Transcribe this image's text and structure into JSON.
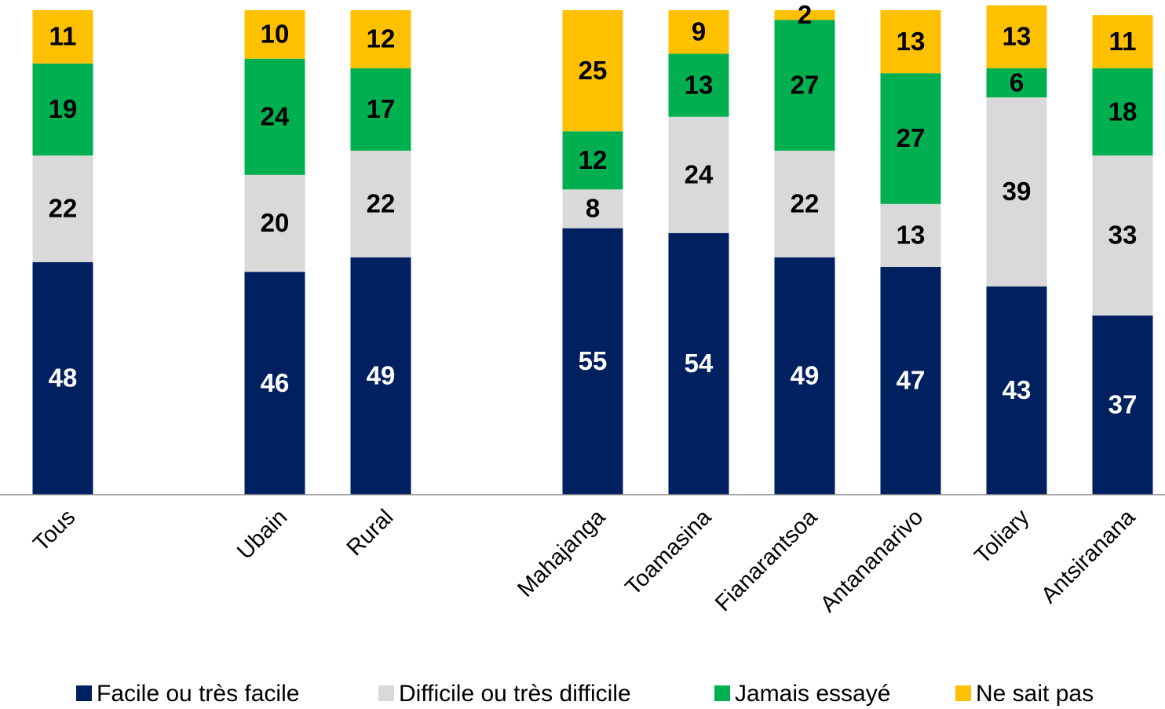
{
  "chart_data": {
    "type": "stacked_bar",
    "categories": [
      "Tous",
      null,
      "Ubain",
      "Rural",
      null,
      "Mahajanga",
      "Toamasina",
      "Fianarantsoa",
      "Antananarivo",
      "Toliary",
      "Antsiranana"
    ],
    "series": [
      {
        "name": "Facile ou très facile",
        "color": "#002060",
        "values": [
          48,
          null,
          46,
          49,
          null,
          55,
          54,
          49,
          47,
          43,
          37
        ]
      },
      {
        "name": "Difficile ou très difficile",
        "color": "#d9d9d9",
        "values": [
          22,
          null,
          20,
          22,
          null,
          8,
          24,
          22,
          13,
          39,
          33
        ]
      },
      {
        "name": "Jamais essayé",
        "color": "#00b050",
        "values": [
          19,
          null,
          24,
          17,
          null,
          12,
          13,
          27,
          27,
          6,
          18
        ]
      },
      {
        "name": "Ne sait pas",
        "color": "#ffc000",
        "values": [
          11,
          null,
          10,
          12,
          null,
          25,
          9,
          2,
          13,
          13,
          11
        ]
      }
    ],
    "ylim": [
      0,
      100
    ],
    "legend": "bottom"
  }
}
